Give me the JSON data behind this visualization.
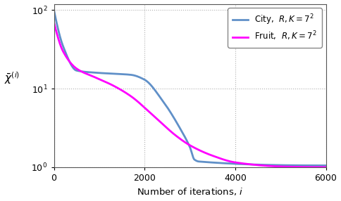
{
  "title": "",
  "xlabel": "Number of iterations, $i$",
  "ylabel": "$\\bar{\\chi}^{(i)}$",
  "xlim": [
    0,
    6000
  ],
  "ylim_log": [
    1.0,
    120.0
  ],
  "city_color": "#6090c8",
  "fruit_color": "#ff00ff",
  "legend_labels": [
    "City,  $R,K=7^2$",
    "Fruit,  $R,K=7^2$"
  ],
  "linewidth": 2.0,
  "background_color": "#ffffff",
  "xticks": [
    0,
    2000,
    4000,
    6000
  ],
  "yticks": [
    1,
    10,
    100
  ]
}
